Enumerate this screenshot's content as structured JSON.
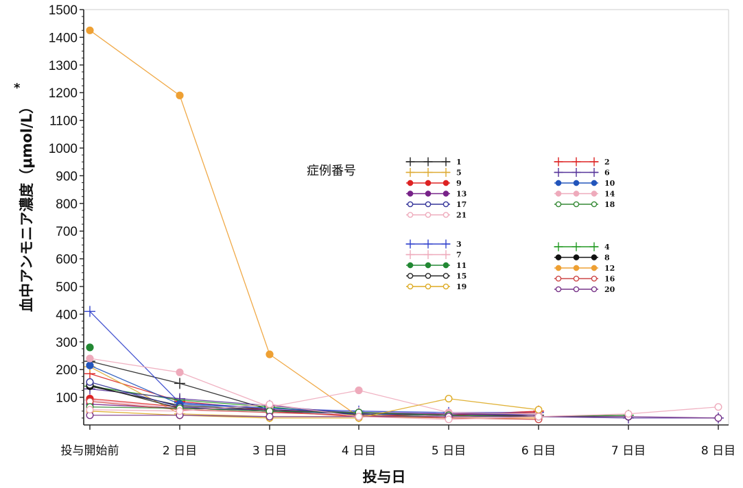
{
  "chart_data": {
    "type": "line",
    "xlabel": "投与日",
    "ylabel": "血中アンモニア濃度（μmol/L）",
    "ylabel_note": "*",
    "ylim": [
      0,
      1500
    ],
    "yticks": [
      100,
      200,
      300,
      400,
      500,
      600,
      700,
      800,
      900,
      1000,
      1100,
      1200,
      1300,
      1400,
      1500
    ],
    "categories": [
      "投与開始前",
      "2 日目",
      "3 日目",
      "4 日目",
      "5 日目",
      "6 日目",
      "7 日目",
      "8 日目"
    ],
    "legend_title": "症例番号",
    "grid": false,
    "legend_position": "right-center",
    "series": [
      {
        "name": "1",
        "color": "#222222",
        "marker": "plus",
        "values": [
          230,
          150,
          55,
          40,
          35,
          35,
          null,
          null
        ]
      },
      {
        "name": "2",
        "color": "#dd2222",
        "marker": "plus",
        "values": [
          185,
          85,
          55,
          40,
          35,
          50,
          null,
          null
        ]
      },
      {
        "name": "3",
        "color": "#3344cc",
        "marker": "plus",
        "values": [
          410,
          80,
          60,
          50,
          45,
          45,
          null,
          null
        ]
      },
      {
        "name": "4",
        "color": "#229922",
        "marker": "plus",
        "values": [
          140,
          90,
          65,
          35,
          30,
          30,
          35,
          null
        ]
      },
      {
        "name": "5",
        "color": "#ddaa33",
        "marker": "plus",
        "values": [
          210,
          40,
          30,
          30,
          30,
          30,
          null,
          null
        ]
      },
      {
        "name": "6",
        "color": "#553399",
        "marker": "plus",
        "values": [
          130,
          95,
          70,
          40,
          35,
          30,
          25,
          25
        ]
      },
      {
        "name": "7",
        "color": "#eeaabb",
        "marker": "plus",
        "values": [
          90,
          60,
          50,
          45,
          30,
          30,
          null,
          null
        ]
      },
      {
        "name": "8",
        "color": "#111111",
        "marker": "filled-circle",
        "values": [
          140,
          70,
          55,
          40,
          35,
          30,
          30,
          null
        ]
      },
      {
        "name": "9",
        "color": "#dd2222",
        "marker": "filled-circle",
        "values": [
          95,
          65,
          50,
          30,
          40,
          45,
          null,
          null
        ]
      },
      {
        "name": "10",
        "color": "#2255bb",
        "marker": "filled-circle",
        "values": [
          215,
          75,
          60,
          45,
          40,
          40,
          null,
          null
        ]
      },
      {
        "name": "11",
        "color": "#228833",
        "marker": "filled-circle",
        "values": [
          280,
          null,
          null,
          null,
          null,
          null,
          null,
          null
        ]
      },
      {
        "name": "12",
        "color": "#eea033",
        "marker": "filled-circle",
        "values": [
          1425,
          1190,
          255,
          30,
          25,
          25,
          null,
          null
        ]
      },
      {
        "name": "13",
        "color": "#772288",
        "marker": "filled-circle",
        "values": [
          75,
          60,
          55,
          45,
          40,
          35,
          null,
          null
        ]
      },
      {
        "name": "14",
        "color": "#eeaabb",
        "marker": "filled-circle",
        "values": [
          240,
          190,
          65,
          125,
          45,
          40,
          null,
          null
        ]
      },
      {
        "name": "15",
        "color": "#222222",
        "marker": "open-circle",
        "values": [
          145,
          60,
          50,
          40,
          35,
          30,
          null,
          null
        ]
      },
      {
        "name": "16",
        "color": "#cc4444",
        "marker": "open-circle",
        "values": [
          85,
          55,
          45,
          35,
          25,
          20,
          null,
          null
        ]
      },
      {
        "name": "17",
        "color": "#333399",
        "marker": "open-circle",
        "values": [
          155,
          65,
          50,
          40,
          35,
          30,
          null,
          null
        ]
      },
      {
        "name": "18",
        "color": "#338833",
        "marker": "open-circle",
        "values": [
          65,
          60,
          50,
          45,
          35,
          30,
          35,
          null
        ]
      },
      {
        "name": "19",
        "color": "#ddaa22",
        "marker": "open-circle",
        "values": [
          50,
          35,
          25,
          25,
          95,
          55,
          null,
          null
        ]
      },
      {
        "name": "20",
        "color": "#773388",
        "marker": "open-circle",
        "values": [
          35,
          35,
          30,
          30,
          30,
          30,
          30,
          25
        ]
      },
      {
        "name": "21",
        "color": "#eeaabb",
        "marker": "open-circle",
        "values": [
          55,
          50,
          75,
          30,
          20,
          30,
          40,
          65
        ]
      }
    ],
    "legend_columns": [
      [
        "1",
        "5",
        "9",
        "13",
        "17",
        "21"
      ],
      [
        "2",
        "6",
        "10",
        "14",
        "18"
      ],
      [
        "3",
        "7",
        "11",
        "15",
        "19"
      ],
      [
        "4",
        "8",
        "12",
        "16",
        "20"
      ]
    ]
  }
}
